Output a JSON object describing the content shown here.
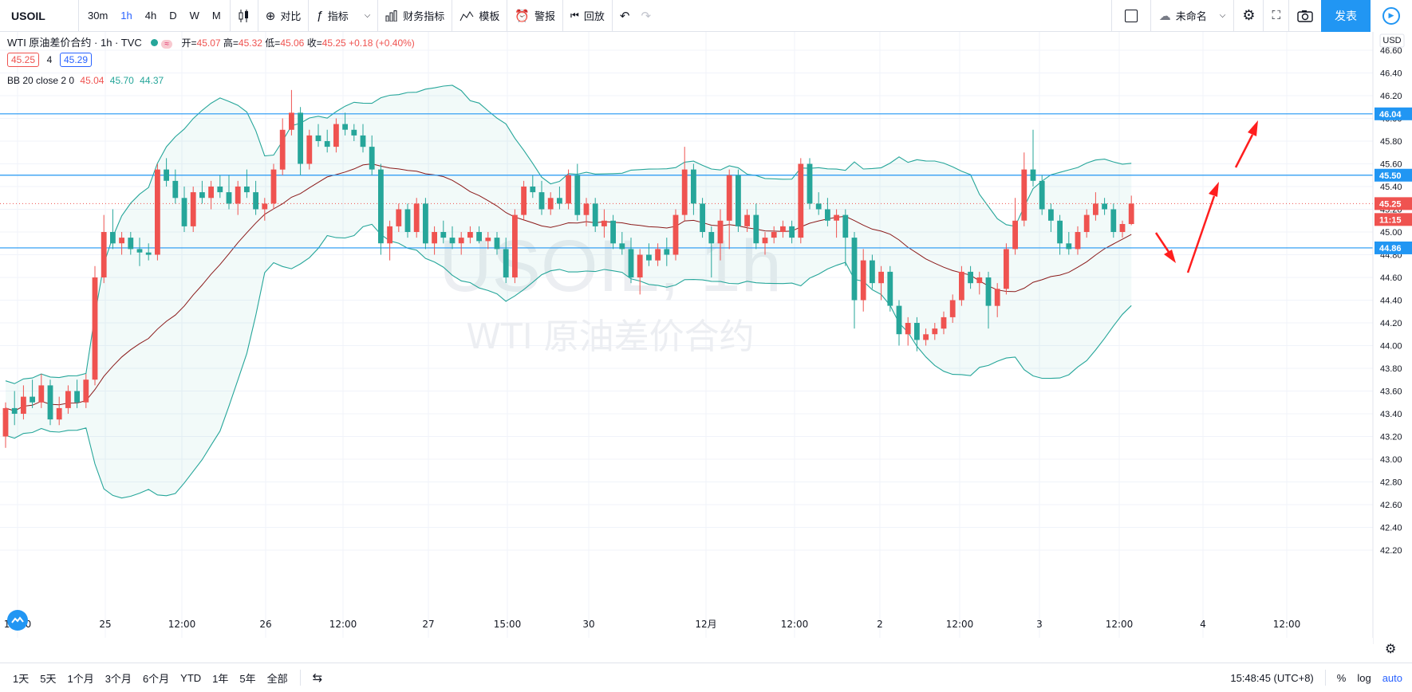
{
  "toolbar": {
    "symbol": "USOIL",
    "intervals": [
      "30m",
      "1h",
      "4h",
      "D",
      "W",
      "M"
    ],
    "active_interval": "1h",
    "compare_label": "对比",
    "indicators_label": "指标",
    "financials_label": "财务指标",
    "templates_label": "模板",
    "alert_label": "警报",
    "replay_label": "回放",
    "layout_name": "未命名",
    "publish_label": "发表"
  },
  "legend": {
    "title": "WTI 原油差价合约 · 1h · TVC",
    "open_label": "开=",
    "open": "45.07",
    "high_label": "高=",
    "high": "45.32",
    "low_label": "低=",
    "low": "45.06",
    "close_label": "收=",
    "close": "45.25",
    "change": "+0.18 (+0.40%)",
    "bid": "45.25",
    "spread": "4",
    "ask": "45.29",
    "bb_label": "BB 20 close 2 0",
    "bb_mid": "45.04",
    "bb_upper": "45.70",
    "bb_lower": "44.37"
  },
  "watermark": {
    "symbol": "USOIL, 1h",
    "name": "WTI 原油差价合约"
  },
  "price_axis": {
    "currency": "USD",
    "ticks": [
      "46.60",
      "46.40",
      "46.20",
      "46.00",
      "45.80",
      "45.60",
      "45.40",
      "45.20",
      "45.00",
      "44.80",
      "44.60",
      "44.40",
      "44.20",
      "44.00",
      "43.80",
      "43.60",
      "43.40",
      "43.20",
      "43.00",
      "42.80",
      "42.60",
      "42.40",
      "42.20"
    ],
    "badges": [
      {
        "text": "46.04",
        "price": 46.04,
        "color": "#2196f3"
      },
      {
        "text": "45.50",
        "price": 45.5,
        "color": "#2196f3"
      },
      {
        "text": "45.25",
        "price": 45.25,
        "color": "#ef5350"
      },
      {
        "text": "11:15",
        "price": 45.11,
        "color": "#ef5350"
      },
      {
        "text": "44.86",
        "price": 44.86,
        "color": "#2196f3"
      }
    ]
  },
  "time_axis": {
    "labels": [
      "12:00",
      "25",
      "12:00",
      "26",
      "12:00",
      "27",
      "15:00",
      "30",
      "12月",
      "12:00",
      "2",
      "12:00",
      "3",
      "12:00",
      "4",
      "12:00"
    ]
  },
  "chart_data": {
    "type": "candlestick",
    "symbol": "USOIL",
    "interval": "1h",
    "ylim": [
      42.1,
      46.7
    ],
    "horizontal_lines": [
      46.04,
      45.5,
      44.86
    ],
    "last_price": 45.25,
    "candles_ohlc": [
      [
        43.2,
        43.5,
        43.1,
        43.45
      ],
      [
        43.45,
        43.6,
        43.3,
        43.4
      ],
      [
        43.4,
        43.65,
        43.35,
        43.55
      ],
      [
        43.55,
        43.7,
        43.45,
        43.5
      ],
      [
        43.5,
        43.75,
        43.45,
        43.65
      ],
      [
        43.65,
        43.7,
        43.3,
        43.35
      ],
      [
        43.35,
        43.55,
        43.3,
        43.45
      ],
      [
        43.45,
        43.65,
        43.4,
        43.6
      ],
      [
        43.6,
        43.7,
        43.45,
        43.5
      ],
      [
        43.5,
        43.75,
        43.45,
        43.7
      ],
      [
        43.7,
        44.7,
        43.65,
        44.6
      ],
      [
        44.6,
        45.15,
        44.55,
        45.0
      ],
      [
        45.0,
        45.2,
        44.85,
        44.9
      ],
      [
        44.9,
        45.0,
        44.8,
        44.95
      ],
      [
        44.95,
        45.0,
        44.8,
        44.85
      ],
      [
        44.85,
        44.95,
        44.7,
        44.82
      ],
      [
        44.82,
        44.9,
        44.75,
        44.8
      ],
      [
        44.8,
        45.6,
        44.75,
        45.55
      ],
      [
        45.55,
        45.65,
        45.4,
        45.45
      ],
      [
        45.45,
        45.55,
        45.25,
        45.3
      ],
      [
        45.3,
        45.4,
        45.0,
        45.05
      ],
      [
        45.05,
        45.4,
        45.0,
        45.35
      ],
      [
        45.35,
        45.45,
        45.25,
        45.3
      ],
      [
        45.3,
        45.45,
        45.2,
        45.4
      ],
      [
        45.4,
        45.5,
        45.3,
        45.35
      ],
      [
        45.35,
        45.5,
        45.2,
        45.25
      ],
      [
        45.25,
        45.45,
        45.15,
        45.4
      ],
      [
        45.4,
        45.55,
        45.3,
        45.35
      ],
      [
        45.35,
        45.45,
        45.15,
        45.2
      ],
      [
        45.2,
        45.3,
        45.1,
        45.25
      ],
      [
        45.25,
        45.6,
        45.2,
        45.55
      ],
      [
        45.55,
        46.0,
        45.5,
        45.9
      ],
      [
        45.9,
        46.25,
        45.85,
        46.05
      ],
      [
        46.05,
        46.1,
        45.5,
        45.6
      ],
      [
        45.6,
        45.9,
        45.55,
        45.85
      ],
      [
        45.85,
        45.95,
        45.75,
        45.8
      ],
      [
        45.8,
        45.9,
        45.7,
        45.75
      ],
      [
        45.75,
        46.0,
        45.7,
        45.95
      ],
      [
        45.95,
        46.05,
        45.85,
        45.9
      ],
      [
        45.9,
        45.95,
        45.8,
        45.85
      ],
      [
        45.85,
        45.95,
        45.7,
        45.75
      ],
      [
        45.75,
        45.85,
        45.5,
        45.55
      ],
      [
        45.55,
        45.6,
        44.8,
        44.9
      ],
      [
        44.9,
        45.1,
        44.75,
        45.05
      ],
      [
        45.05,
        45.25,
        45.0,
        45.2
      ],
      [
        45.2,
        45.25,
        44.95,
        45.0
      ],
      [
        45.0,
        45.3,
        44.95,
        45.25
      ],
      [
        45.25,
        45.3,
        44.85,
        44.9
      ],
      [
        44.9,
        45.05,
        44.8,
        45.0
      ],
      [
        45.0,
        45.1,
        44.9,
        44.95
      ],
      [
        44.95,
        45.05,
        44.85,
        44.9
      ],
      [
        44.9,
        45.0,
        44.8,
        44.95
      ],
      [
        44.95,
        45.05,
        44.9,
        45.0
      ],
      [
        45.0,
        45.05,
        44.9,
        44.92
      ],
      [
        44.92,
        45.0,
        44.85,
        44.95
      ],
      [
        44.95,
        45.0,
        44.8,
        44.85
      ],
      [
        44.85,
        44.95,
        44.55,
        44.6
      ],
      [
        44.6,
        45.2,
        44.55,
        45.15
      ],
      [
        45.15,
        45.45,
        45.1,
        45.4
      ],
      [
        45.4,
        45.5,
        45.3,
        45.35
      ],
      [
        45.35,
        45.45,
        45.15,
        45.2
      ],
      [
        45.2,
        45.35,
        45.15,
        45.3
      ],
      [
        45.3,
        45.4,
        45.2,
        45.25
      ],
      [
        45.25,
        45.55,
        45.2,
        45.5
      ],
      [
        45.5,
        45.6,
        45.1,
        45.15
      ],
      [
        45.15,
        45.3,
        45.05,
        45.25
      ],
      [
        45.25,
        45.3,
        45.0,
        45.05
      ],
      [
        45.05,
        45.2,
        44.95,
        45.1
      ],
      [
        45.1,
        45.15,
        44.85,
        44.9
      ],
      [
        44.9,
        45.0,
        44.8,
        44.85
      ],
      [
        44.85,
        44.95,
        44.55,
        44.6
      ],
      [
        44.6,
        44.85,
        44.45,
        44.8
      ],
      [
        44.8,
        44.9,
        44.7,
        44.75
      ],
      [
        44.75,
        44.9,
        44.7,
        44.85
      ],
      [
        44.85,
        44.95,
        44.7,
        44.8
      ],
      [
        44.8,
        45.2,
        44.75,
        45.15
      ],
      [
        45.15,
        45.75,
        45.1,
        45.55
      ],
      [
        45.55,
        45.6,
        45.15,
        45.25
      ],
      [
        45.25,
        45.3,
        44.95,
        45.0
      ],
      [
        45.0,
        45.05,
        44.6,
        44.9
      ],
      [
        44.9,
        45.2,
        44.75,
        45.1
      ],
      [
        45.1,
        45.55,
        44.85,
        45.5
      ],
      [
        45.5,
        45.55,
        45.0,
        45.05
      ],
      [
        45.05,
        45.2,
        45.0,
        45.15
      ],
      [
        45.15,
        45.25,
        44.85,
        44.9
      ],
      [
        44.9,
        45.0,
        44.8,
        44.95
      ],
      [
        44.95,
        45.05,
        44.9,
        45.0
      ],
      [
        45.0,
        45.1,
        44.95,
        45.05
      ],
      [
        45.05,
        45.1,
        44.9,
        44.95
      ],
      [
        44.95,
        45.65,
        44.9,
        45.6
      ],
      [
        45.6,
        45.65,
        45.2,
        45.25
      ],
      [
        45.25,
        45.35,
        45.15,
        45.2
      ],
      [
        45.2,
        45.3,
        45.05,
        45.1
      ],
      [
        45.1,
        45.2,
        44.95,
        45.15
      ],
      [
        45.15,
        45.2,
        44.7,
        44.95
      ],
      [
        44.95,
        45.0,
        44.15,
        44.4
      ],
      [
        44.4,
        44.85,
        44.3,
        44.75
      ],
      [
        44.75,
        44.8,
        44.5,
        44.55
      ],
      [
        44.55,
        44.7,
        44.4,
        44.65
      ],
      [
        44.65,
        44.7,
        44.3,
        44.35
      ],
      [
        44.35,
        44.4,
        44.0,
        44.1
      ],
      [
        44.1,
        44.25,
        44.0,
        44.2
      ],
      [
        44.2,
        44.25,
        43.95,
        44.05
      ],
      [
        44.05,
        44.15,
        44.0,
        44.1
      ],
      [
        44.1,
        44.2,
        44.05,
        44.15
      ],
      [
        44.15,
        44.3,
        44.1,
        44.25
      ],
      [
        44.25,
        44.45,
        44.2,
        44.4
      ],
      [
        44.4,
        44.7,
        44.35,
        44.65
      ],
      [
        44.65,
        44.7,
        44.5,
        44.55
      ],
      [
        44.55,
        44.65,
        44.45,
        44.6
      ],
      [
        44.6,
        44.65,
        44.15,
        44.35
      ],
      [
        44.35,
        44.55,
        44.25,
        44.5
      ],
      [
        44.5,
        44.9,
        44.45,
        44.85
      ],
      [
        44.85,
        45.3,
        44.8,
        45.1
      ],
      [
        45.1,
        45.7,
        45.05,
        45.55
      ],
      [
        45.55,
        45.9,
        45.4,
        45.45
      ],
      [
        45.45,
        45.5,
        45.15,
        45.2
      ],
      [
        45.2,
        45.25,
        45.0,
        45.1
      ],
      [
        45.1,
        45.15,
        44.8,
        44.9
      ],
      [
        44.9,
        45.0,
        44.8,
        44.85
      ],
      [
        44.85,
        45.05,
        44.8,
        45.0
      ],
      [
        45.0,
        45.2,
        44.95,
        45.15
      ],
      [
        45.15,
        45.35,
        45.1,
        45.25
      ],
      [
        45.25,
        45.3,
        45.15,
        45.2
      ],
      [
        45.2,
        45.25,
        44.95,
        45.0
      ],
      [
        45.0,
        45.1,
        44.95,
        45.07
      ],
      [
        45.07,
        45.32,
        45.06,
        45.25
      ]
    ],
    "bollinger": {
      "period": 20,
      "stddev": 2,
      "mid_last": 45.04,
      "upper_last": 45.7,
      "lower_last": 44.37
    }
  },
  "bottom_bar": {
    "ranges": [
      "1天",
      "5天",
      "1个月",
      "3个月",
      "6个月",
      "YTD",
      "1年",
      "5年",
      "全部"
    ],
    "clock": "15:48:45 (UTC+8)",
    "percent_label": "%",
    "log_label": "log",
    "auto_label": "auto"
  },
  "colors": {
    "up": "#ef5350",
    "down": "#26a69a",
    "accent": "#2196f3",
    "bb_band": "#26a69a",
    "bb_mid": "#8b1a1a",
    "arrow": "#ff1e1e"
  }
}
